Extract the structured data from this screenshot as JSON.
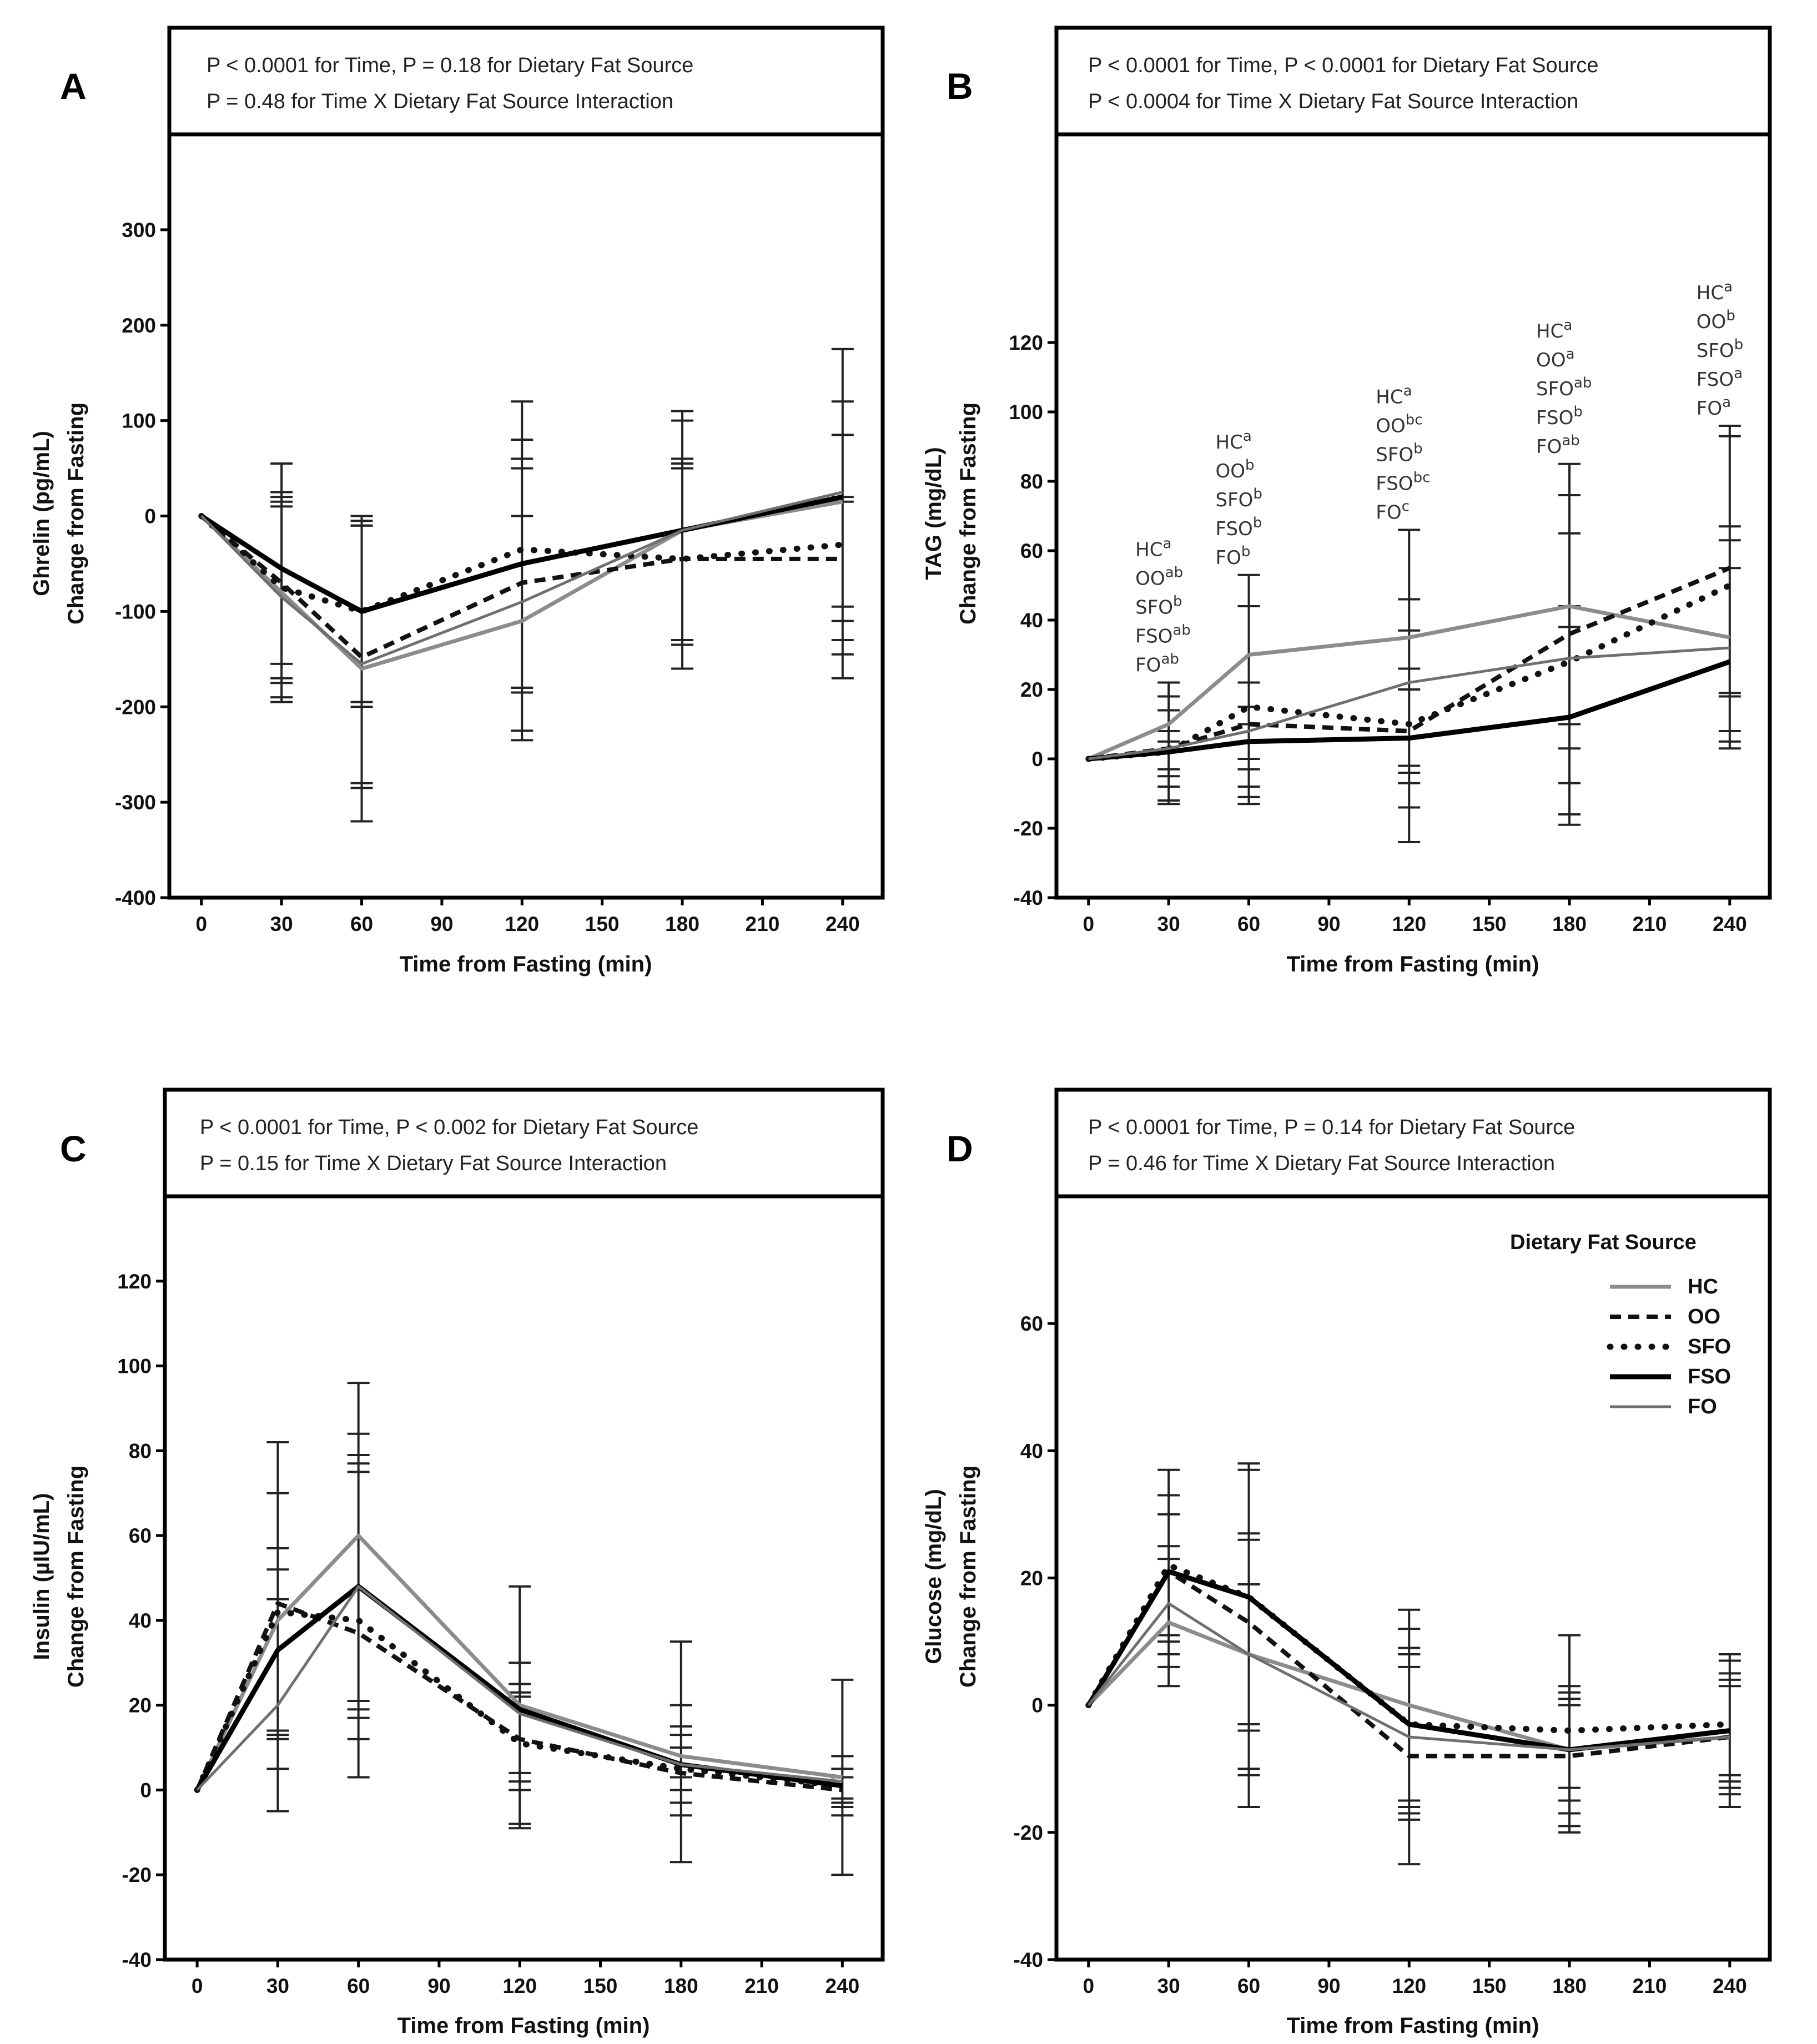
{
  "figure": {
    "x_axis_label": "Time from Fasting (min)",
    "legend_title": "Dietary Fat Source",
    "series_names": [
      "HC",
      "OO",
      "SFO",
      "FSO",
      "FO"
    ]
  },
  "chart_data": [
    {
      "panel": "A",
      "type": "line",
      "stats_lines": [
        "P < 0.0001 for Time, P = 0.18 for Dietary Fat Source",
        "P = 0.48 for Time X Dietary Fat Source Interaction"
      ],
      "ylabel": [
        "Ghrelin (pg/mL)",
        "Change from Fasting"
      ],
      "xlabel": "Time from Fasting (min)",
      "xlim": [
        -12,
        255
      ],
      "ylim": [
        -400,
        400
      ],
      "xticks": [
        0,
        30,
        60,
        90,
        120,
        150,
        180,
        210,
        240
      ],
      "yticks": [
        -400,
        -300,
        -200,
        -100,
        0,
        100,
        200,
        300
      ],
      "x": [
        0,
        30,
        60,
        120,
        180,
        240
      ],
      "series": [
        {
          "name": "HC",
          "values": [
            0,
            -80,
            -160,
            -110,
            -15,
            15
          ]
        },
        {
          "name": "OO",
          "values": [
            0,
            -70,
            -148,
            -70,
            -45,
            -45
          ]
        },
        {
          "name": "SFO",
          "values": [
            0,
            -75,
            -100,
            -35,
            -45,
            -30
          ]
        },
        {
          "name": "FSO",
          "values": [
            0,
            -55,
            -100,
            -50,
            -15,
            20
          ]
        },
        {
          "name": "FO",
          "values": [
            0,
            -85,
            -155,
            -90,
            -15,
            25
          ]
        }
      ],
      "error_bars": [
        {
          "x": 30,
          "highs": [
            55,
            25,
            15,
            10,
            20
          ],
          "lows": [
            -195,
            -175,
            -170,
            -155,
            -190
          ]
        },
        {
          "x": 60,
          "highs": [
            0,
            0,
            -10,
            -10,
            -5
          ],
          "lows": [
            -320,
            -285,
            -280,
            -200,
            -195
          ]
        },
        {
          "x": 120,
          "highs": [
            120,
            80,
            60,
            50,
            0
          ],
          "lows": [
            -235,
            -225,
            -185,
            -180,
            -180
          ]
        },
        {
          "x": 180,
          "highs": [
            110,
            100,
            60,
            50,
            55
          ],
          "lows": [
            -160,
            -135,
            -130,
            -130,
            -130
          ]
        },
        {
          "x": 240,
          "highs": [
            175,
            120,
            85,
            20,
            15
          ],
          "lows": [
            -170,
            -145,
            -130,
            -110,
            -95
          ]
        }
      ],
      "annotations": []
    },
    {
      "panel": "B",
      "type": "line",
      "stats_lines": [
        "P < 0.0001 for Time, P < 0.0001 for Dietary Fat Source",
        "P < 0.0004 for Time X Dietary Fat Source Interaction"
      ],
      "ylabel": [
        "TAG (mg/dL)",
        "Change from Fasting"
      ],
      "xlabel": "Time from Fasting (min)",
      "xlim": [
        -12,
        255
      ],
      "ylim": [
        -40,
        180
      ],
      "xticks": [
        0,
        30,
        60,
        90,
        120,
        150,
        180,
        210,
        240
      ],
      "yticks": [
        -40,
        -20,
        0,
        20,
        40,
        60,
        80,
        100,
        120
      ],
      "x": [
        0,
        30,
        60,
        120,
        180,
        240
      ],
      "series": [
        {
          "name": "HC",
          "values": [
            0,
            10,
            30,
            35,
            44,
            35
          ]
        },
        {
          "name": "OO",
          "values": [
            0,
            3,
            10,
            8,
            36,
            55
          ]
        },
        {
          "name": "SFO",
          "values": [
            0,
            2,
            15,
            10,
            28,
            50
          ]
        },
        {
          "name": "FSO",
          "values": [
            0,
            2,
            5,
            6,
            12,
            28
          ]
        },
        {
          "name": "FO",
          "values": [
            0,
            3,
            8,
            22,
            29,
            32
          ]
        }
      ],
      "error_bars": [
        {
          "x": 30,
          "highs": [
            22,
            18,
            14,
            8,
            5
          ],
          "lows": [
            -13,
            -12,
            -8,
            -5,
            -3
          ]
        },
        {
          "x": 60,
          "highs": [
            53,
            44,
            22,
            15,
            10
          ],
          "lows": [
            -13,
            -11,
            -8,
            -3,
            0
          ]
        },
        {
          "x": 120,
          "highs": [
            66,
            46,
            37,
            26,
            20
          ],
          "lows": [
            -24,
            -14,
            -7,
            -4,
            -2
          ]
        },
        {
          "x": 180,
          "highs": [
            85,
            76,
            65,
            44,
            38
          ],
          "lows": [
            -19,
            -16,
            -7,
            3,
            10
          ]
        },
        {
          "x": 240,
          "highs": [
            96,
            93,
            67,
            63,
            55
          ],
          "lows": [
            3,
            5,
            8,
            19,
            18
          ]
        }
      ],
      "annotations": [
        {
          "x": 30,
          "lines": [
            [
              "HC",
              "a"
            ],
            [
              "OO",
              "ab"
            ],
            [
              "SFO",
              "b"
            ],
            [
              "FSO",
              "ab"
            ],
            [
              "FO",
              "ab"
            ]
          ]
        },
        {
          "x": 60,
          "lines": [
            [
              "HC",
              "a"
            ],
            [
              "OO",
              "b"
            ],
            [
              "SFO",
              "b"
            ],
            [
              "FSO",
              "b"
            ],
            [
              "FO",
              "b"
            ]
          ]
        },
        {
          "x": 120,
          "lines": [
            [
              "HC",
              "a"
            ],
            [
              "OO",
              "bc"
            ],
            [
              "SFO",
              "b"
            ],
            [
              "FSO",
              "bc"
            ],
            [
              "FO",
              "c"
            ]
          ]
        },
        {
          "x": 180,
          "lines": [
            [
              "HC",
              "a"
            ],
            [
              "OO",
              "a"
            ],
            [
              "SFO",
              "ab"
            ],
            [
              "FSO",
              "b"
            ],
            [
              "FO",
              "ab"
            ]
          ]
        },
        {
          "x": 240,
          "lines": [
            [
              "HC",
              "a"
            ],
            [
              "OO",
              "b"
            ],
            [
              "SFO",
              "b"
            ],
            [
              "FSO",
              "a"
            ],
            [
              "FO",
              "a"
            ]
          ]
        }
      ]
    },
    {
      "panel": "C",
      "type": "line",
      "stats_lines": [
        "P < 0.0001 for Time, P < 0.002 for Dietary Fat Source",
        "P = 0.15 for Time X Dietary Fat Source Interaction"
      ],
      "ylabel": [
        "Insulin (µIU/mL)",
        "Change from Fasting"
      ],
      "xlabel": "Time from Fasting (min)",
      "xlim": [
        -12,
        255
      ],
      "ylim": [
        -40,
        140
      ],
      "xticks": [
        0,
        30,
        60,
        90,
        120,
        150,
        180,
        210,
        240
      ],
      "yticks": [
        -40,
        -20,
        0,
        20,
        40,
        60,
        80,
        100,
        120
      ],
      "x": [
        0,
        30,
        60,
        120,
        180,
        240
      ],
      "series": [
        {
          "name": "HC",
          "values": [
            0,
            40,
            60,
            20,
            8,
            3
          ]
        },
        {
          "name": "OO",
          "values": [
            0,
            44,
            37,
            12,
            4,
            0
          ]
        },
        {
          "name": "SFO",
          "values": [
            0,
            42,
            40,
            11,
            5,
            1
          ]
        },
        {
          "name": "FSO",
          "values": [
            0,
            33,
            48,
            19,
            6,
            1
          ]
        },
        {
          "name": "FO",
          "values": [
            0,
            20,
            48,
            18,
            6,
            2
          ]
        }
      ],
      "error_bars": [
        {
          "x": 30,
          "highs": [
            82,
            70,
            57,
            52,
            45
          ],
          "lows": [
            -5,
            5,
            12,
            14,
            13
          ]
        },
        {
          "x": 60,
          "highs": [
            96,
            84,
            79,
            77,
            75
          ],
          "lows": [
            3,
            12,
            17,
            19,
            21
          ]
        },
        {
          "x": 120,
          "highs": [
            48,
            30,
            25,
            23,
            22
          ],
          "lows": [
            -9,
            -8,
            0,
            2,
            4
          ]
        },
        {
          "x": 180,
          "highs": [
            35,
            20,
            15,
            13,
            10
          ],
          "lows": [
            -17,
            -6,
            -3,
            0,
            3
          ]
        },
        {
          "x": 240,
          "highs": [
            26,
            8,
            8,
            5,
            3
          ],
          "lows": [
            -20,
            -6,
            -3,
            -4,
            -2
          ]
        }
      ],
      "annotations": []
    },
    {
      "panel": "D",
      "type": "line",
      "stats_lines": [
        "P < 0.0001 for Time, P = 0.14 for Dietary Fat Source",
        "P = 0.46 for Time X Dietary Fat Source Interaction"
      ],
      "ylabel": [
        "Glucose (mg/dL)",
        "Change from Fasting"
      ],
      "xlabel": "Time from Fasting (min)",
      "xlim": [
        -12,
        255
      ],
      "ylim": [
        -40,
        80
      ],
      "xticks": [
        0,
        30,
        60,
        90,
        120,
        150,
        180,
        210,
        240
      ],
      "yticks": [
        -40,
        -20,
        0,
        20,
        40,
        60
      ],
      "x": [
        0,
        30,
        60,
        120,
        180,
        240
      ],
      "series": [
        {
          "name": "HC",
          "values": [
            0,
            13,
            8,
            0,
            -7,
            -5
          ]
        },
        {
          "name": "OO",
          "values": [
            0,
            21,
            13,
            -8,
            -8,
            -5
          ]
        },
        {
          "name": "SFO",
          "values": [
            0,
            22,
            17,
            -3,
            -4,
            -3
          ]
        },
        {
          "name": "FSO",
          "values": [
            0,
            21,
            17,
            -3,
            -7,
            -4
          ]
        },
        {
          "name": "FO",
          "values": [
            0,
            16,
            8,
            -5,
            -7,
            -5
          ]
        }
      ],
      "error_bars": [
        {
          "x": 30,
          "highs": [
            37,
            33,
            30,
            25,
            23
          ],
          "lows": [
            3,
            6,
            8,
            10,
            11
          ]
        },
        {
          "x": 60,
          "highs": [
            38,
            37,
            27,
            26,
            19
          ],
          "lows": [
            -16,
            -11,
            -10,
            -4,
            -3
          ]
        },
        {
          "x": 120,
          "highs": [
            15,
            12,
            9,
            8,
            6
          ],
          "lows": [
            -25,
            -18,
            -17,
            -16,
            -15
          ]
        },
        {
          "x": 180,
          "highs": [
            11,
            3,
            2,
            1,
            0
          ],
          "lows": [
            -20,
            -19,
            -17,
            -15,
            -13
          ]
        },
        {
          "x": 240,
          "highs": [
            8,
            7,
            5,
            4,
            3
          ],
          "lows": [
            -16,
            -14,
            -13,
            -12,
            -11
          ]
        }
      ],
      "annotations": []
    }
  ]
}
